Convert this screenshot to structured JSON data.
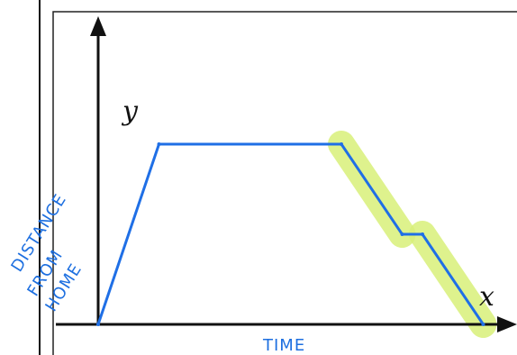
{
  "chart_data": {
    "type": "line",
    "xlabel_handwritten": "TIME",
    "ylabel_handwritten": [
      "DISTANCE",
      "FROM",
      "HOME"
    ],
    "x_axis_letter": "x",
    "y_axis_letter": "y",
    "series": [
      {
        "points": [
          [
            0,
            0
          ],
          [
            1.5,
            5
          ],
          [
            6,
            5
          ],
          [
            7.5,
            2.5
          ],
          [
            8,
            2.5
          ],
          [
            9.5,
            0
          ]
        ]
      }
    ],
    "highlighted_segments": [
      [
        2,
        3
      ],
      [
        4,
        5
      ]
    ],
    "xlim": [
      0,
      10
    ],
    "ylim": [
      0,
      9
    ],
    "grid": false
  },
  "colors": {
    "line": "#1f6fe6",
    "highlight": "#d9f07a",
    "axis": "#111111",
    "frame": "#222222",
    "handwriting": "#1d6fe0"
  }
}
